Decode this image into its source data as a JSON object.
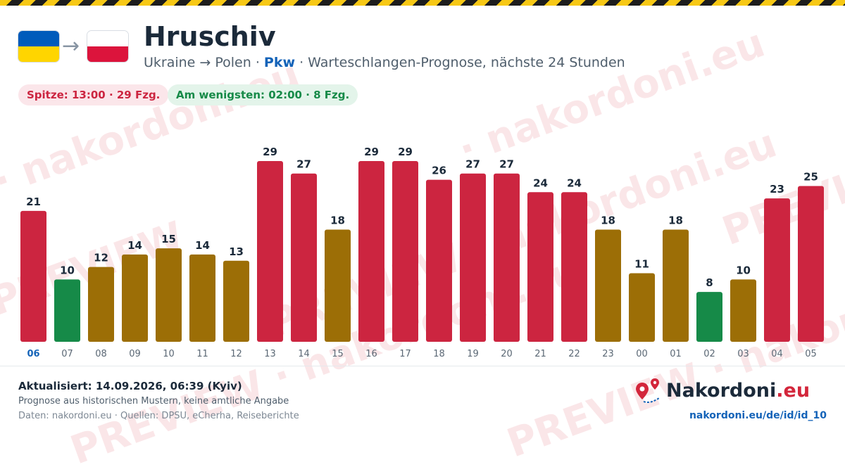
{
  "header": {
    "title": "Hruschiv",
    "subtitle_route": "Ukraine → Polen ·",
    "subtitle_mode": "Pkw",
    "subtitle_rest": "· Warteschlangen-Prognose, nächste 24 Stunden",
    "arrow": "→"
  },
  "flags": {
    "from": {
      "top": "#ffd500",
      "bottom_reverse": "#005bbb"
    },
    "to": {
      "top": "#ffffff",
      "bottom": "#dc143c"
    }
  },
  "summary": {
    "peak": "Spitze: 13:00 · 29 Fzg.",
    "lowest": "Am wenigsten: 02:00 · 8 Fzg."
  },
  "watermark": {
    "text_brand": "· nakordoni.eu",
    "text_preview": "PREVIEW · nakordoni.eu",
    "text_preview_short": "PREVIEW"
  },
  "colors": {
    "high": "#cc2540",
    "medium": "#9c6e06",
    "low": "#168a48",
    "current_hour_label": "#1463b8",
    "axis_label": "#5b6875",
    "value_label": "#1b2a3a"
  },
  "chart_data": {
    "type": "bar",
    "categories": [
      "06",
      "07",
      "08",
      "09",
      "10",
      "11",
      "12",
      "13",
      "14",
      "15",
      "16",
      "17",
      "18",
      "19",
      "20",
      "21",
      "22",
      "23",
      "00",
      "01",
      "02",
      "03",
      "04",
      "05"
    ],
    "values": [
      21,
      10,
      12,
      14,
      15,
      14,
      13,
      29,
      27,
      18,
      29,
      29,
      26,
      27,
      27,
      24,
      24,
      18,
      11,
      18,
      8,
      10,
      23,
      25
    ],
    "levels": [
      "high",
      "low",
      "medium",
      "medium",
      "medium",
      "medium",
      "medium",
      "high",
      "high",
      "medium",
      "high",
      "high",
      "high",
      "high",
      "high",
      "high",
      "high",
      "medium",
      "medium",
      "medium",
      "low",
      "medium",
      "high",
      "high"
    ],
    "current_category": "06",
    "ylim": [
      0,
      30
    ],
    "grid": false,
    "title": "",
    "xlabel": "",
    "ylabel": ""
  },
  "footer": {
    "updated": "Aktualisiert: 14.09.2026, 06:39 (Kyiv)",
    "note": "Prognose aus historischen Mustern, keine amtliche Angabe",
    "sources": "Daten: nakordoni.eu · Quellen: DPSU, eCherha, Reiseberichte",
    "logo_name": "Nakordoni",
    "logo_tld": ".eu",
    "url": "nakordoni.eu/de/id/id_10"
  }
}
